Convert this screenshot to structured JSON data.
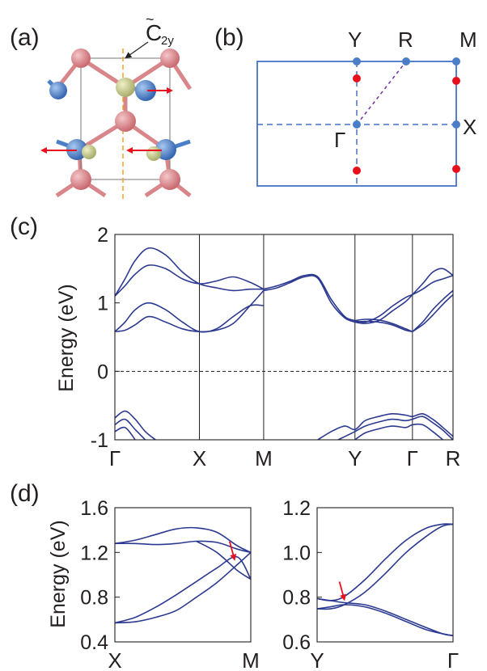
{
  "panels": {
    "a": {
      "label": "(a)",
      "symmetry_label": {
        "base": "C",
        "sub": "2y"
      }
    },
    "b": {
      "label": "(b)",
      "points": {
        "Y": "Y",
        "R": "R",
        "M": "M",
        "X": "X",
        "G": "Γ"
      }
    },
    "c": {
      "label": "(c)"
    },
    "d": {
      "label": "(d)"
    }
  },
  "colors": {
    "band": "#2b3990",
    "bz": "#4472c4",
    "weyl_point": "#e8101d",
    "arrow": "#e8101d",
    "guide": "#f0a030",
    "path_diag": "#7030a0",
    "atom_pink": "#d9868a",
    "atom_blue": "#4a7fc8",
    "atom_olive": "#c6c98a"
  },
  "chart_data": [
    {
      "id": "c",
      "type": "line",
      "ylabel": "Energy (eV)",
      "ylim": [
        -1,
        2
      ],
      "yticks": [
        "2",
        "1",
        "0",
        "-1"
      ],
      "kpath": [
        "Γ",
        "X",
        "M",
        "Y",
        "Γ",
        "R"
      ],
      "kpos": [
        0,
        0.25,
        0.44,
        0.71,
        0.88,
        1.0
      ],
      "fermi_level": 0,
      "series": [
        {
          "x": [
            0,
            0.03,
            0.06,
            0.1,
            0.15,
            0.2,
            0.25,
            0.3,
            0.35,
            0.4,
            0.44
          ],
          "values": [
            1.1,
            1.35,
            1.62,
            1.8,
            1.7,
            1.45,
            1.28,
            1.22,
            1.18,
            1.2,
            1.2
          ]
        },
        {
          "x": [
            0,
            0.03,
            0.06,
            0.1,
            0.15,
            0.2,
            0.25,
            0.3,
            0.35,
            0.4,
            0.44
          ],
          "values": [
            1.1,
            1.25,
            1.42,
            1.55,
            1.5,
            1.35,
            1.28,
            1.32,
            1.38,
            1.3,
            1.2
          ]
        },
        {
          "x": [
            0,
            0.03,
            0.06,
            0.1,
            0.15,
            0.2,
            0.25,
            0.3,
            0.35,
            0.4,
            0.44
          ],
          "values": [
            0.58,
            0.72,
            0.9,
            1.0,
            0.9,
            0.72,
            0.58,
            0.62,
            0.8,
            0.96,
            0.96
          ]
        },
        {
          "x": [
            0,
            0.03,
            0.06,
            0.1,
            0.15,
            0.2,
            0.25,
            0.3,
            0.35,
            0.4,
            0.44
          ],
          "values": [
            0.58,
            0.6,
            0.68,
            0.8,
            0.72,
            0.62,
            0.58,
            0.6,
            0.7,
            0.96,
            1.18
          ]
        },
        {
          "x": [
            0.44,
            0.48,
            0.52,
            0.56,
            0.6,
            0.64,
            0.68,
            0.71
          ],
          "values": [
            1.2,
            1.25,
            1.32,
            1.4,
            1.38,
            1.05,
            0.8,
            0.74
          ]
        },
        {
          "x": [
            0.44,
            0.48,
            0.52,
            0.56,
            0.6,
            0.64,
            0.68,
            0.71
          ],
          "values": [
            1.18,
            1.22,
            1.3,
            1.38,
            1.36,
            1.0,
            0.78,
            0.72
          ]
        },
        {
          "x": [
            0.71,
            0.74,
            0.78,
            0.82,
            0.86,
            0.88
          ],
          "values": [
            0.74,
            0.72,
            0.8,
            0.95,
            1.08,
            1.12
          ]
        },
        {
          "x": [
            0.71,
            0.74,
            0.78,
            0.82,
            0.86,
            0.88
          ],
          "values": [
            0.72,
            0.7,
            0.74,
            0.88,
            1.02,
            1.12
          ]
        },
        {
          "x": [
            0.71,
            0.74,
            0.78,
            0.82,
            0.86,
            0.88
          ],
          "values": [
            0.74,
            0.76,
            0.75,
            0.7,
            0.62,
            0.58
          ]
        },
        {
          "x": [
            0.71,
            0.74,
            0.78,
            0.82,
            0.86,
            0.88
          ],
          "values": [
            0.72,
            0.73,
            0.72,
            0.68,
            0.6,
            0.58
          ]
        },
        {
          "x": [
            0.88,
            0.91,
            0.94,
            0.97,
            1.0
          ],
          "values": [
            1.12,
            1.28,
            1.45,
            1.5,
            1.4
          ]
        },
        {
          "x": [
            0.88,
            0.91,
            0.94,
            0.97,
            1.0
          ],
          "values": [
            1.12,
            1.2,
            1.3,
            1.35,
            1.4
          ]
        },
        {
          "x": [
            0.88,
            0.91,
            0.94,
            0.97,
            1.0
          ],
          "values": [
            0.58,
            0.72,
            0.9,
            1.05,
            1.18
          ]
        },
        {
          "x": [
            0.88,
            0.91,
            0.94,
            0.97,
            1.0
          ],
          "values": [
            0.58,
            0.68,
            0.82,
            0.98,
            1.12
          ]
        },
        {
          "x": [
            0,
            0.03,
            0.06,
            0.09,
            0.12
          ],
          "values": [
            -0.68,
            -0.58,
            -0.7,
            -0.88,
            -1.0
          ]
        },
        {
          "x": [
            0,
            0.03,
            0.06,
            0.09
          ],
          "values": [
            -0.78,
            -0.7,
            -0.85,
            -1.0
          ]
        },
        {
          "x": [
            0,
            0.03,
            0.06
          ],
          "values": [
            -0.88,
            -0.82,
            -1.0
          ]
        },
        {
          "x": [
            0.6,
            0.64,
            0.68,
            0.71,
            0.74,
            0.78,
            0.82,
            0.86,
            0.88,
            0.91,
            0.94,
            0.97,
            1.0
          ],
          "values": [
            -1.0,
            -0.88,
            -0.8,
            -0.85,
            -0.72,
            -0.66,
            -0.62,
            -0.64,
            -0.66,
            -0.62,
            -0.7,
            -0.82,
            -0.95
          ]
        },
        {
          "x": [
            0.66,
            0.71,
            0.74,
            0.78,
            0.82,
            0.86,
            0.88,
            0.91,
            0.94,
            0.97,
            1.0
          ],
          "values": [
            -1.0,
            -0.88,
            -0.8,
            -0.74,
            -0.7,
            -0.72,
            -0.7,
            -0.66,
            -0.75,
            -0.86,
            -1.0
          ]
        },
        {
          "x": [
            0.71,
            0.74,
            0.78,
            0.82,
            0.86,
            0.88,
            0.91,
            0.94,
            0.97
          ],
          "values": [
            -1.0,
            -0.9,
            -0.84,
            -0.8,
            -0.82,
            -0.78,
            -0.78,
            -0.88,
            -1.0
          ]
        }
      ]
    },
    {
      "id": "d1",
      "type": "line",
      "ylabel": "Energy (eV)",
      "ylim": [
        0.4,
        1.6
      ],
      "yticks": [
        "1.6",
        "1.2",
        "0.8",
        "0.4"
      ],
      "xticks": [
        "X",
        "M"
      ],
      "arrow_at": [
        0.88,
        1.11
      ],
      "series": [
        {
          "x": [
            0,
            0.15,
            0.3,
            0.45,
            0.6,
            0.75,
            0.9,
            1.0
          ],
          "values": [
            1.28,
            1.28,
            1.27,
            1.28,
            1.3,
            1.29,
            1.23,
            1.2
          ]
        },
        {
          "x": [
            0,
            0.15,
            0.3,
            0.45,
            0.6,
            0.75,
            0.9,
            1.0
          ],
          "values": [
            1.28,
            1.31,
            1.36,
            1.41,
            1.42,
            1.38,
            1.26,
            1.2
          ]
        },
        {
          "x": [
            0,
            0.15,
            0.3,
            0.45,
            0.6,
            0.75,
            0.9,
            1.0
          ],
          "values": [
            0.57,
            0.58,
            0.62,
            0.68,
            0.8,
            0.93,
            1.09,
            1.2
          ]
        },
        {
          "x": [
            0,
            0.15,
            0.3,
            0.45,
            0.6,
            0.75,
            0.9,
            1.0
          ],
          "values": [
            0.57,
            0.62,
            0.71,
            0.82,
            0.94,
            1.06,
            1.16,
            0.96
          ]
        },
        {
          "x": [
            0.6,
            0.75,
            0.9,
            1.0
          ],
          "values": [
            1.3,
            1.2,
            1.04,
            0.96
          ]
        }
      ]
    },
    {
      "id": "d2",
      "type": "line",
      "ylim": [
        0.55,
        1.2
      ],
      "yticks": [
        "1.2",
        "1.0",
        "0.8",
        "0.6"
      ],
      "xticks": [
        "Y",
        "Γ"
      ],
      "arrow_at": [
        0.2,
        0.74
      ],
      "series": [
        {
          "x": [
            0,
            0.1,
            0.2,
            0.35,
            0.5,
            0.65,
            0.8,
            0.92,
            1.0
          ],
          "values": [
            0.76,
            0.75,
            0.77,
            0.85,
            0.95,
            1.04,
            1.1,
            1.12,
            1.12
          ]
        },
        {
          "x": [
            0,
            0.1,
            0.2,
            0.35,
            0.5,
            0.65,
            0.8,
            0.92,
            1.0
          ],
          "values": [
            0.71,
            0.71,
            0.73,
            0.79,
            0.88,
            0.98,
            1.06,
            1.11,
            1.12
          ]
        },
        {
          "x": [
            0,
            0.1,
            0.2,
            0.35,
            0.5,
            0.65,
            0.8,
            0.92,
            1.0
          ],
          "values": [
            0.76,
            0.75,
            0.74,
            0.73,
            0.7,
            0.66,
            0.62,
            0.59,
            0.58
          ]
        },
        {
          "x": [
            0,
            0.1,
            0.2,
            0.35,
            0.5,
            0.65,
            0.8,
            0.92,
            1.0
          ],
          "values": [
            0.71,
            0.72,
            0.73,
            0.72,
            0.69,
            0.65,
            0.61,
            0.59,
            0.58
          ]
        }
      ]
    }
  ]
}
